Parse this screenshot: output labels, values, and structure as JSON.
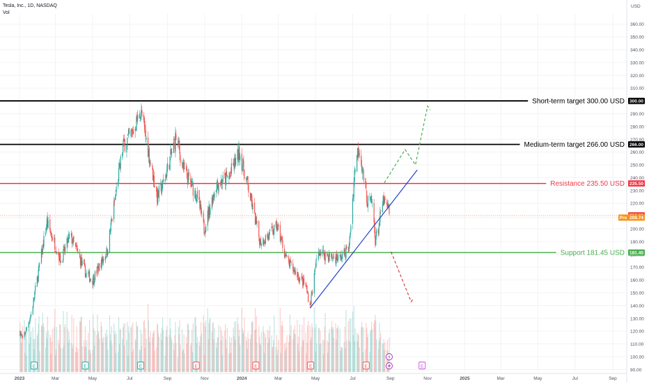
{
  "header": {
    "title": "Tesla, Inc., 1D, NASDAQ",
    "vol_label": "Vol"
  },
  "currency": "USD",
  "colors": {
    "up": "#26a69a",
    "down": "#ef5350",
    "support": "#4caf50",
    "resistance": "#f23645",
    "target": "#000000",
    "trendline": "#1e40d0",
    "current": "#f7931a"
  },
  "chart_data": {
    "type": "candlestick",
    "title": "Tesla, Inc., 1D, NASDAQ",
    "ylim": [
      88,
      368
    ],
    "y_ticks": [
      90,
      100,
      110,
      120,
      130,
      140,
      150,
      160,
      170,
      180,
      190,
      200,
      210,
      220,
      230,
      240,
      250,
      260,
      270,
      280,
      290,
      300,
      310,
      320,
      330,
      340,
      350,
      360
    ],
    "x_ticks": [
      "2023",
      "Mar",
      "May",
      "Jul",
      "Sep",
      "Nov",
      "2024",
      "Mar",
      "May",
      "Jul",
      "Sep",
      "Nov",
      "2025",
      "Mar",
      "May",
      "Jul",
      "Sep"
    ],
    "price_path": [
      [
        "2023-01-01",
        121
      ],
      [
        "2023-01-06",
        113
      ],
      [
        "2023-01-20",
        133
      ],
      [
        "2023-02-15",
        205
      ],
      [
        "2023-03-10",
        175
      ],
      [
        "2023-03-25",
        195
      ],
      [
        "2023-04-20",
        165
      ],
      [
        "2023-05-01",
        160
      ],
      [
        "2023-05-25",
        183
      ],
      [
        "2023-06-20",
        265
      ],
      [
        "2023-07-05",
        275
      ],
      [
        "2023-07-19",
        292
      ],
      [
        "2023-08-15",
        225
      ],
      [
        "2023-08-25",
        235
      ],
      [
        "2023-09-15",
        272
      ],
      [
        "2023-09-28",
        245
      ],
      [
        "2023-10-20",
        225
      ],
      [
        "2023-10-31",
        200
      ],
      [
        "2023-11-20",
        235
      ],
      [
        "2023-12-10",
        240
      ],
      [
        "2023-12-28",
        260
      ],
      [
        "2024-01-10",
        235
      ],
      [
        "2024-01-31",
        190
      ],
      [
        "2024-02-15",
        195
      ],
      [
        "2024-02-28",
        202
      ],
      [
        "2024-03-15",
        175
      ],
      [
        "2024-04-15",
        155
      ],
      [
        "2024-04-22",
        140
      ],
      [
        "2024-05-05",
        183
      ],
      [
        "2024-05-25",
        178
      ],
      [
        "2024-06-10",
        177
      ],
      [
        "2024-06-25",
        185
      ],
      [
        "2024-07-05",
        250
      ],
      [
        "2024-07-11",
        265
      ],
      [
        "2024-07-25",
        222
      ],
      [
        "2024-08-02",
        220
      ],
      [
        "2024-08-07",
        192
      ],
      [
        "2024-08-12",
        200
      ],
      [
        "2024-08-20",
        222
      ],
      [
        "2024-08-30",
        214
      ]
    ],
    "levels": [
      {
        "label": "Short-term target 300.00 USD",
        "tag": "300.00",
        "value": 300.0,
        "kind": "target"
      },
      {
        "label": "Medium-term target 266.00 USD",
        "tag": "266.00",
        "value": 266.0,
        "kind": "target"
      },
      {
        "label": "Resistance 235.50 USD",
        "tag": "235.50",
        "value": 235.5,
        "kind": "resistance"
      },
      {
        "label": "Support 181.45 USD",
        "tag": "181.45",
        "value": 181.45,
        "kind": "support"
      }
    ],
    "price_tags": [
      {
        "text": "210.60",
        "value": 210.6
      },
      {
        "prefix": "Pre",
        "text": "208.74",
        "value": 208.74
      }
    ],
    "trendline": {
      "start": [
        "2024-04-22",
        138
      ],
      "end": [
        "2024-10-15",
        246
      ]
    },
    "projections": {
      "bullish": [
        [
          "2024-08-22",
          236
        ],
        [
          "2024-09-25",
          262
        ],
        [
          "2024-10-12",
          250
        ],
        [
          "2024-11-01",
          296
        ],
        [
          "2024-11-05",
          293
        ]
      ],
      "bearish": [
        [
          "2024-09-02",
          182
        ],
        [
          "2024-10-05",
          143
        ],
        [
          "2024-10-08",
          145
        ]
      ]
    },
    "event_markers": [
      {
        "label": "E",
        "date": "2023-01-25",
        "kind": "earnings-up"
      },
      {
        "label": "E",
        "date": "2023-04-19",
        "kind": "earnings-up"
      },
      {
        "label": "E",
        "date": "2023-07-19",
        "kind": "earnings-up"
      },
      {
        "label": "E",
        "date": "2023-10-18",
        "kind": "earnings-down"
      },
      {
        "label": "E",
        "date": "2024-01-24",
        "kind": "earnings-down"
      },
      {
        "label": "E",
        "date": "2024-04-23",
        "kind": "earnings-down"
      },
      {
        "label": "E",
        "date": "2024-07-23",
        "kind": "earnings-down"
      },
      {
        "label": "E",
        "date": "2024-10-23",
        "kind": "earnings-upcoming"
      }
    ],
    "event_icons": [
      "lightning-icon",
      "plus-icon"
    ]
  }
}
